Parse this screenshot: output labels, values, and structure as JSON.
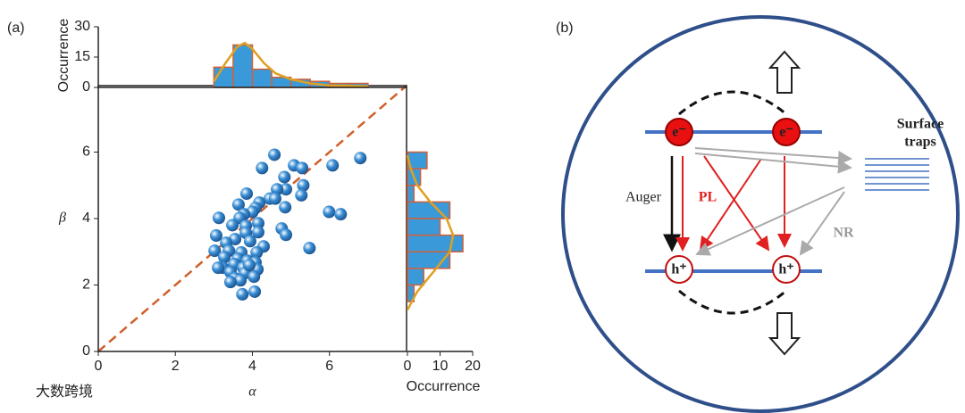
{
  "panel_labels": [
    "(a)",
    "(b)"
  ],
  "watermark": "大数跨境",
  "chart_data": [
    {
      "type": "scatter",
      "xlabel": "α",
      "ylabel": "β",
      "color": "#3a8fd6",
      "xlim": [
        0,
        8
      ],
      "ylim": [
        0,
        8
      ],
      "xticks": [
        0,
        2,
        4,
        6
      ],
      "yticks": [
        0,
        2,
        4,
        6
      ],
      "x": [
        4.57,
        4.25,
        5.08,
        5.29,
        6.8,
        6.08,
        4.83,
        5.32,
        4.87,
        4.64,
        3.85,
        5.27,
        4.45,
        4.59,
        4.18,
        4.08,
        4.85,
        3.64,
        4.0,
        3.78,
        3.67,
        3.13,
        5.99,
        6.29,
        3.48,
        3.83,
        4.15,
        4.76,
        4.87,
        3.06,
        3.83,
        4.15,
        3.55,
        3.94,
        3.32,
        4.29,
        5.48,
        3.02,
        3.39,
        3.71,
        4.11,
        3.27,
        3.62,
        3.87,
        4.08,
        3.53,
        3.23,
        3.76,
        4.13,
        3.43,
        3.81,
        3.55,
        4.04,
        3.69,
        3.43,
        3.74,
        4.06,
        3.11,
        3.92
      ],
      "values": [
        5.92,
        5.52,
        5.6,
        5.52,
        5.82,
        5.6,
        5.25,
        5.0,
        4.88,
        4.88,
        4.75,
        4.7,
        4.6,
        4.6,
        4.48,
        4.32,
        4.34,
        4.42,
        4.2,
        4.13,
        4.02,
        4.02,
        4.2,
        4.13,
        3.8,
        3.78,
        3.86,
        3.7,
        3.51,
        3.49,
        3.57,
        3.59,
        3.38,
        3.32,
        3.27,
        3.16,
        3.11,
        3.03,
        3.03,
        2.98,
        2.98,
        2.84,
        2.79,
        2.73,
        2.68,
        2.63,
        2.52,
        2.52,
        2.47,
        2.39,
        2.36,
        2.2,
        2.25,
        2.14,
        2.09,
        1.72,
        1.8,
        2.52,
        2.6
      ]
    },
    {
      "type": "histogram",
      "ylabel": "Occurrence",
      "color": "#3a9ad9",
      "edgecolor": "#d0603a",
      "xlim": [
        0,
        8
      ],
      "ylim": [
        0,
        30
      ],
      "yticks": [
        0,
        15,
        30
      ],
      "bins": [
        3.0,
        3.5,
        4.0,
        4.5,
        5.0,
        5.5,
        6.0,
        6.5,
        7.0
      ],
      "values": [
        10,
        21,
        9,
        5,
        4,
        3,
        2,
        2
      ],
      "fit": {
        "color": "#e0a020",
        "x": [
          3.0,
          3.3,
          3.6,
          3.8,
          4.0,
          4.3,
          4.6,
          5.0,
          5.5,
          6.0,
          7.0
        ],
        "values": [
          3,
          12,
          20,
          22,
          19,
          12,
          7,
          4,
          2,
          1,
          0.5
        ]
      }
    },
    {
      "type": "histogram",
      "orientation": "horizontal",
      "xlabel": "Occurrence",
      "color": "#3a9ad9",
      "edgecolor": "#d0603a",
      "ylim": [
        0,
        8
      ],
      "xlim": [
        0,
        20
      ],
      "xticks": [
        0,
        10,
        20
      ],
      "bins": [
        1.5,
        2.0,
        2.5,
        3.0,
        3.5,
        4.0,
        4.5,
        5.0,
        5.5,
        6.0
      ],
      "values": [
        2,
        5,
        13,
        17,
        10,
        13,
        2,
        4,
        6
      ],
      "fit": {
        "color": "#e0a020",
        "y": [
          1.25,
          1.8,
          2.4,
          3.0,
          3.5,
          4.0,
          4.5,
          5.0,
          5.5,
          5.9
        ],
        "values": [
          0,
          3,
          8,
          13,
          14,
          12,
          7,
          3,
          1,
          0
        ]
      }
    }
  ],
  "diagram": {
    "electron": "e⁻",
    "hole": "h⁺",
    "auger": "Auger",
    "pl": "PL",
    "nr": "NR",
    "traps": [
      "Surface",
      "traps"
    ]
  }
}
